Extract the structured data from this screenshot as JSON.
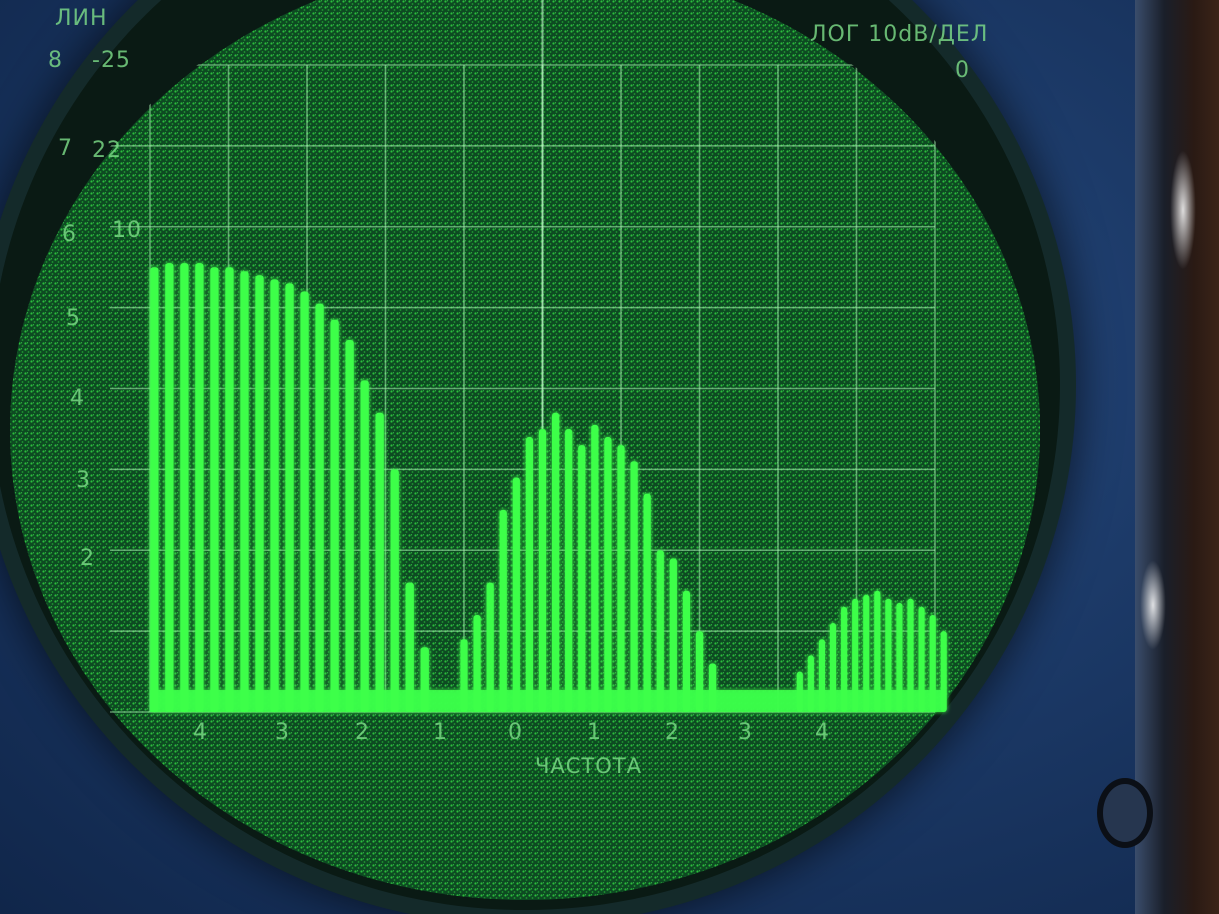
{
  "header": {
    "mode_label": "ЛИН",
    "scale_label": "ЛОГ 10dB/ДЕЛ",
    "ref_zero": "0"
  },
  "left_scale": {
    "linear_ticks": [
      "8",
      "7",
      "6",
      "5",
      "4",
      "3",
      "2"
    ],
    "db_ticks": [
      "-25",
      "22",
      "10"
    ]
  },
  "footer": {
    "x_label": "ЧАСТОТА",
    "x_ticks": [
      "4",
      "3",
      "2",
      "1",
      "0",
      "1",
      "2",
      "3",
      "4"
    ]
  },
  "chart_data": {
    "type": "bar",
    "color": "#3cff4a",
    "xlim": [
      -4.5,
      4.5
    ],
    "ylim": [
      0,
      8
    ],
    "grid": true,
    "groups": [
      {
        "values": [
          5.5,
          5.55,
          5.55,
          5.55,
          5.5,
          5.5,
          5.45,
          5.4,
          5.35,
          5.3,
          5.2,
          5.05,
          4.85,
          4.6,
          4.1,
          3.7,
          3.0,
          1.6,
          0.8
        ]
      },
      {
        "values": [
          0.9,
          1.2,
          1.6,
          2.5,
          2.9,
          3.4,
          3.5,
          3.7,
          3.5,
          3.3,
          3.55,
          3.4,
          3.3,
          3.1,
          2.7,
          2.0,
          1.9,
          1.5,
          1.0,
          0.6
        ]
      },
      {
        "values": [
          0.5,
          0.7,
          0.9,
          1.1,
          1.3,
          1.4,
          1.45,
          1.5,
          1.4,
          1.35,
          1.4,
          1.3,
          1.2,
          1.0
        ]
      }
    ]
  }
}
